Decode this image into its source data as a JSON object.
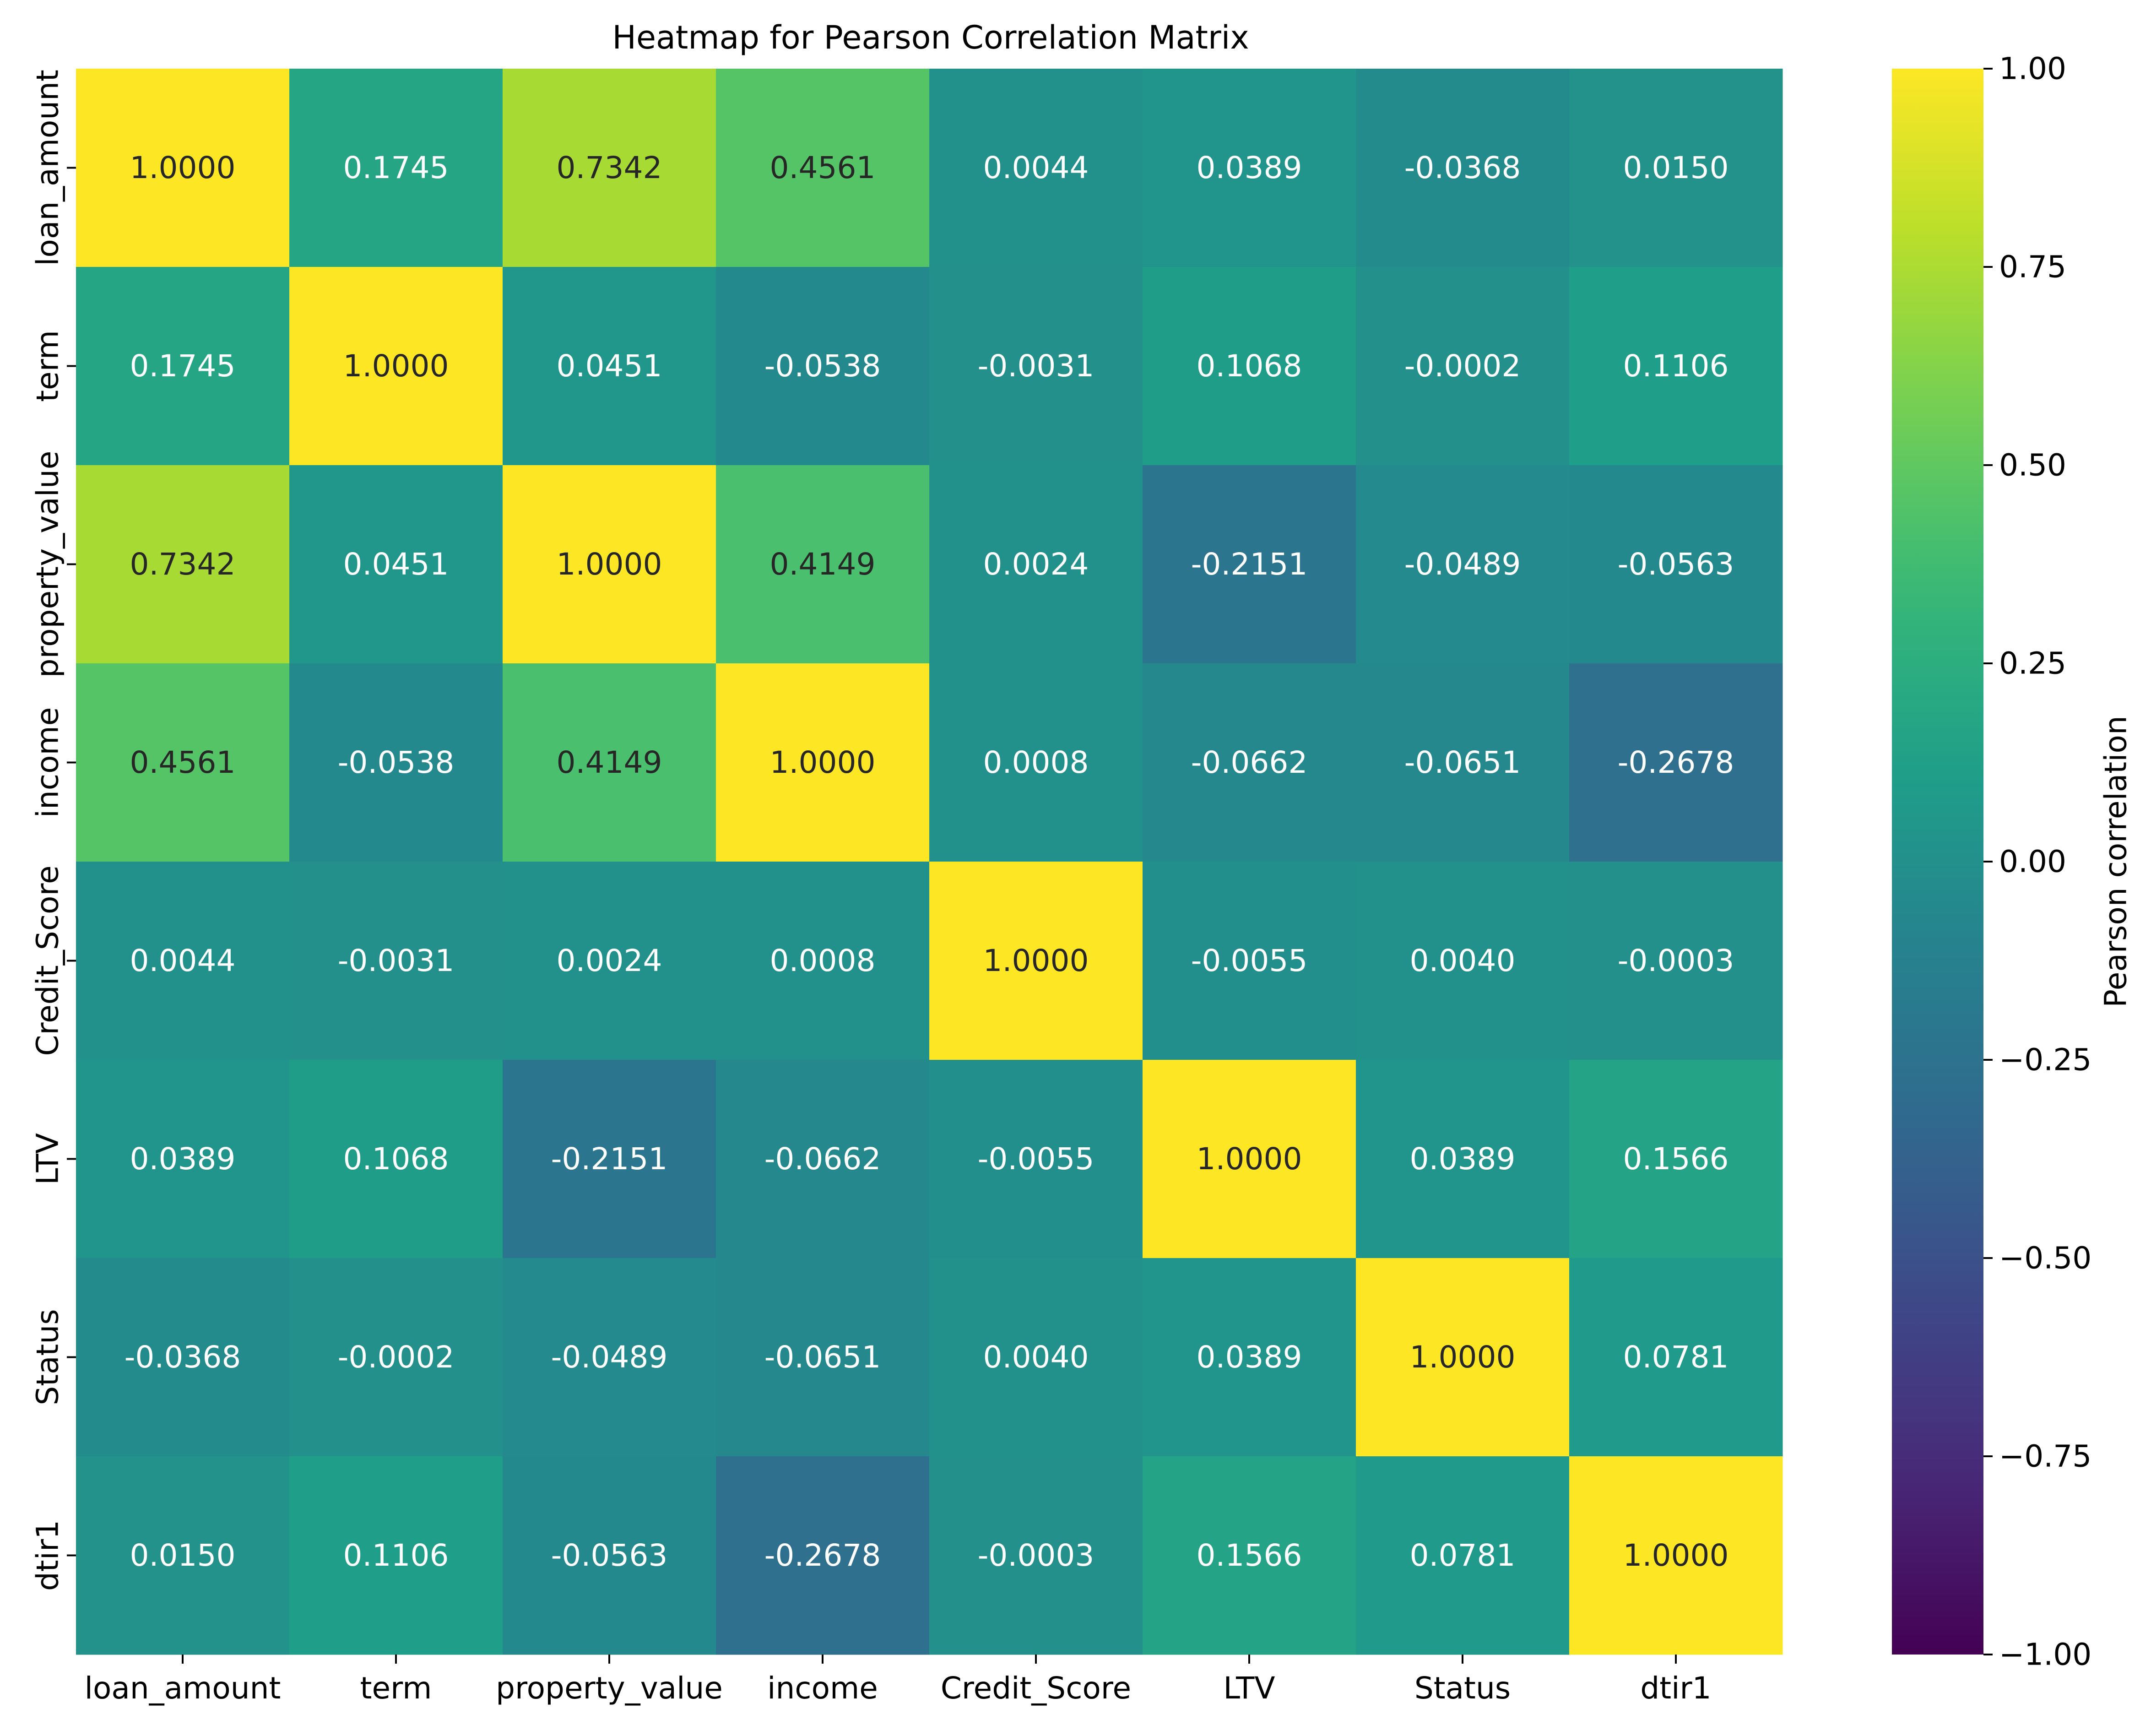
{
  "chart_data": {
    "type": "heatmap",
    "title": "Heatmap for Pearson Correlation Matrix",
    "rows": [
      "loan_amount",
      "term",
      "property_value",
      "income",
      "Credit_Score",
      "LTV",
      "Status",
      "dtir1"
    ],
    "columns": [
      "loan_amount",
      "term",
      "property_value",
      "income",
      "Credit_Score",
      "LTV",
      "Status",
      "dtir1"
    ],
    "values": [
      [
        1.0,
        0.1745,
        0.7342,
        0.4561,
        0.0044,
        0.0389,
        -0.0368,
        0.015
      ],
      [
        0.1745,
        1.0,
        0.0451,
        -0.0538,
        -0.0031,
        0.1068,
        -0.0002,
        0.1106
      ],
      [
        0.7342,
        0.0451,
        1.0,
        0.4149,
        0.0024,
        -0.2151,
        -0.0489,
        -0.0563
      ],
      [
        0.4561,
        -0.0538,
        0.4149,
        1.0,
        0.0008,
        -0.0662,
        -0.0651,
        -0.2678
      ],
      [
        0.0044,
        -0.0031,
        0.0024,
        0.0008,
        1.0,
        -0.0055,
        0.004,
        -0.0003
      ],
      [
        0.0389,
        0.1068,
        -0.2151,
        -0.0662,
        -0.0055,
        1.0,
        0.0389,
        0.1566
      ],
      [
        -0.0368,
        -0.0002,
        -0.0489,
        -0.0651,
        0.004,
        0.0389,
        1.0,
        0.0781
      ],
      [
        0.015,
        0.1106,
        -0.0563,
        -0.2678,
        -0.0003,
        0.1566,
        0.0781,
        1.0
      ]
    ],
    "value_format_decimals": 4,
    "colormap": "viridis",
    "vmin": -1.0,
    "vmax": 1.0,
    "colorbar": {
      "label": "Pearson correlation",
      "ticks": [
        "1.00",
        "0.75",
        "0.50",
        "0.25",
        "0.00",
        "−0.25",
        "−0.50",
        "−0.75",
        "−1.00"
      ],
      "tick_values": [
        1.0,
        0.75,
        0.5,
        0.25,
        0.0,
        -0.25,
        -0.5,
        -0.75,
        -1.0
      ]
    },
    "grid": false
  }
}
